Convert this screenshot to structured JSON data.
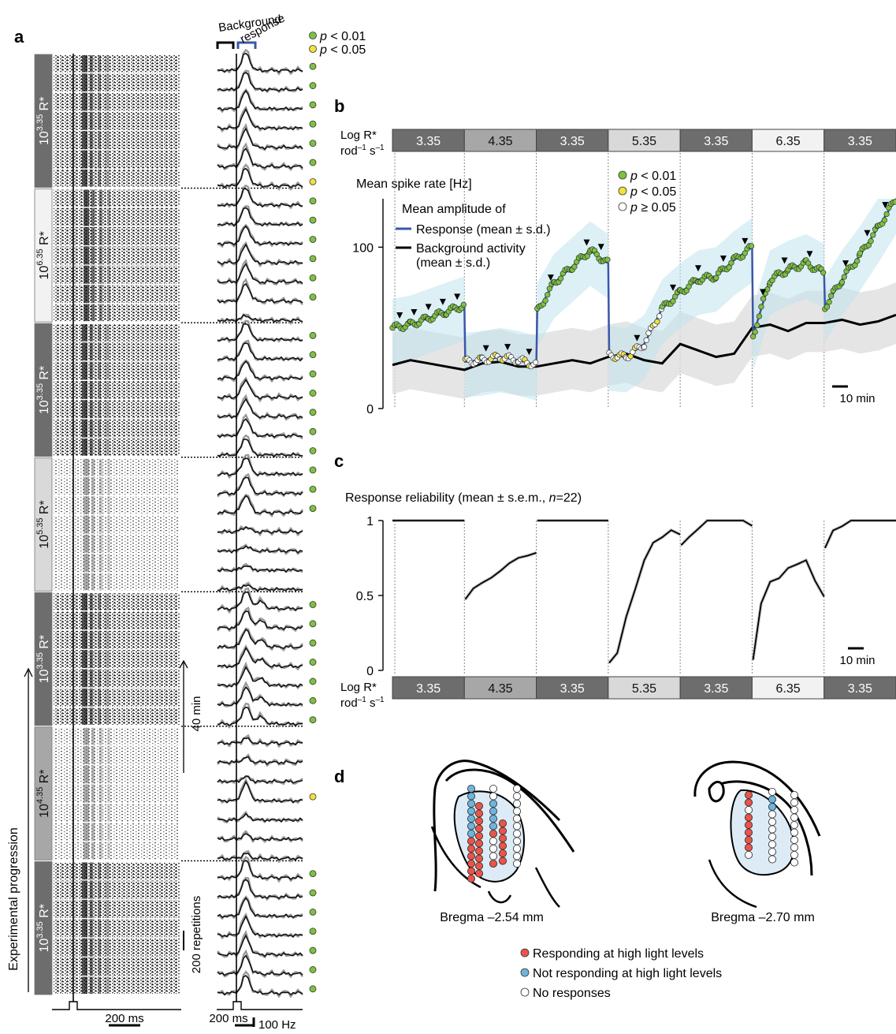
{
  "panel_labels": {
    "a": "a",
    "b": "b",
    "c": "c",
    "d": "d"
  },
  "panel_a": {
    "header_background": "Background",
    "header_response": "response",
    "sig_legend": [
      {
        "color": "#7cc241",
        "p": "p",
        "text": " < 0.01"
      },
      {
        "color": "#f2e13a",
        "p": "p",
        "text": " < 0.05"
      }
    ],
    "blocks": [
      {
        "base": "10",
        "exp": "3.35",
        "unit": " R*",
        "shade": "#6d6d6d",
        "text_color": "#ffffff",
        "dots": [
          "#7cc241",
          "#7cc241",
          "#7cc241",
          "#7cc241",
          "#7cc241",
          "#7cc241",
          "#f2e13a"
        ]
      },
      {
        "base": "10",
        "exp": "6.35",
        "unit": " R*",
        "shade": "#f2f2f2",
        "text_color": "#111111",
        "dots": [
          "#7cc241",
          "#7cc241",
          "#7cc241",
          "#7cc241",
          "#7cc241",
          "#7cc241",
          ""
        ]
      },
      {
        "base": "10",
        "exp": "3.35",
        "unit": " R*",
        "shade": "#6d6d6d",
        "text_color": "#ffffff",
        "dots": [
          "#7cc241",
          "#7cc241",
          "#7cc241",
          "#7cc241",
          "#7cc241",
          "#7cc241",
          "#7cc241"
        ]
      },
      {
        "base": "10",
        "exp": "5.35",
        "unit": " R*",
        "shade": "#d9d9d9",
        "text_color": "#111111",
        "dots": [
          "#7cc241",
          "#7cc241",
          "#7cc241",
          "",
          "",
          "",
          ""
        ]
      },
      {
        "base": "10",
        "exp": "3.35",
        "unit": " R*",
        "shade": "#6d6d6d",
        "text_color": "#ffffff",
        "dots": [
          "#7cc241",
          "#7cc241",
          "#7cc241",
          "#7cc241",
          "#7cc241",
          "#7cc241",
          "#7cc241"
        ]
      },
      {
        "base": "10",
        "exp": "4.35",
        "unit": " R*",
        "shade": "#a7a7a7",
        "text_color": "#111111",
        "dots": [
          "",
          "",
          "",
          "#f2e13a",
          "",
          "",
          ""
        ]
      },
      {
        "base": "10",
        "exp": "3.35",
        "unit": " R*",
        "shade": "#6d6d6d",
        "text_color": "#ffffff",
        "dots": [
          "#7cc241",
          "#7cc241",
          "#7cc241",
          "#7cc241",
          "#7cc241",
          "#7cc241",
          "#7cc241"
        ]
      }
    ],
    "scale_time": "40 min",
    "scale_reps": "200 repetitions",
    "scale_ms_raster": "200 ms",
    "scale_ms_psth": "200 ms",
    "scale_hz": "100 Hz",
    "progression_label": "Experimental progression"
  },
  "light_bar": {
    "label_line1": "Log R*",
    "label_line2_a": "rod",
    "label_line2_sup1": "–1",
    "label_line2_b": " s",
    "label_line2_sup2": "–1",
    "segments": [
      {
        "label": "3.35",
        "color": "#6d6d6d",
        "text_color": "#ffffff"
      },
      {
        "label": "4.35",
        "color": "#a7a7a7",
        "text_color": "#111111"
      },
      {
        "label": "3.35",
        "color": "#6d6d6d",
        "text_color": "#ffffff"
      },
      {
        "label": "5.35",
        "color": "#d9d9d9",
        "text_color": "#111111"
      },
      {
        "label": "3.35",
        "color": "#6d6d6d",
        "text_color": "#ffffff"
      },
      {
        "label": "6.35",
        "color": "#f2f2f2",
        "text_color": "#111111"
      },
      {
        "label": "3.35",
        "color": "#6d6d6d",
        "text_color": "#ffffff"
      }
    ]
  },
  "panel_b": {
    "ylabel": "Mean spike rate [Hz]",
    "legend_title": "Mean amplitude of",
    "legend_response": "Response (mean ± s.d.)",
    "legend_background_1": "Background activity",
    "legend_background_2": "(mean ± s.d.)",
    "sig": [
      {
        "color": "#7cc241",
        "p": "p",
        "text": " < 0.01"
      },
      {
        "color": "#f2e13a",
        "p": "p",
        "text": " < 0.05"
      },
      {
        "color": "#ffffff",
        "p": "p",
        "text": " ≥ 0.05"
      }
    ],
    "scalebar": "10 min",
    "colors": {
      "response": "#3a57a7",
      "background": "#000000",
      "response_band": "#cfeaf3",
      "background_band": "#e0e0e0"
    }
  },
  "panel_c": {
    "title_prefix": "Response reliability (mean ± s.e.m., ",
    "title_n": "n",
    "title_suffix": "=22)",
    "scalebar": "10 min"
  },
  "panel_d": {
    "section_left": "Bregma –2.54 mm",
    "section_right": "Bregma –2.70 mm",
    "legend": [
      {
        "color": "#e8554a",
        "text": "Responding at high light levels"
      },
      {
        "color": "#6fb4da",
        "text": "Not responding at high light levels"
      },
      {
        "color": "#ffffff",
        "text": "No responses"
      }
    ]
  },
  "chart_data": [
    {
      "type": "line",
      "panel": "b",
      "ylabel": "Mean spike rate [Hz]",
      "ylim": [
        0,
        130
      ],
      "yticks": [
        0,
        100
      ],
      "x_unit": "min",
      "xlim": [
        0,
        280
      ],
      "series": [
        {
          "name": "Response",
          "x": [
            0,
            10,
            20,
            30,
            40,
            40.5,
            50,
            60,
            70,
            80,
            80.5,
            90,
            100,
            110,
            120,
            120.5,
            130,
            140,
            150,
            160,
            170,
            180,
            190,
            200,
            200.5,
            210,
            220,
            230,
            240,
            240.5,
            250,
            260,
            270,
            280
          ],
          "values": [
            50,
            52,
            56,
            60,
            64,
            29,
            30,
            32,
            30,
            27,
            60,
            78,
            88,
            98,
            90,
            33,
            32,
            40,
            62,
            72,
            80,
            82,
            92,
            100,
            45,
            80,
            86,
            90,
            84,
            63,
            80,
            95,
            112,
            130
          ]
        },
        {
          "name": "Background activity",
          "x": [
            0,
            10,
            20,
            30,
            40,
            50,
            60,
            70,
            80,
            90,
            100,
            110,
            120,
            130,
            140,
            150,
            160,
            170,
            180,
            190,
            200,
            210,
            220,
            230,
            240,
            250,
            260,
            270,
            280
          ],
          "values": [
            27,
            30,
            28,
            26,
            24,
            28,
            29,
            26,
            26,
            28,
            30,
            28,
            32,
            34,
            30,
            28,
            40,
            36,
            32,
            34,
            50,
            52,
            48,
            53,
            53,
            55,
            52,
            54,
            58
          ]
        }
      ]
    },
    {
      "type": "line",
      "panel": "c",
      "title": "Response reliability (mean ± s.e.m., n=22)",
      "ylim": [
        0,
        1
      ],
      "yticks": [
        0,
        0.5,
        1
      ],
      "x_unit": "min",
      "xlim": [
        0,
        280
      ],
      "series": [
        {
          "name": "",
          "x": [
            0,
            40,
            40.5,
            45,
            50,
            55,
            60,
            65,
            70,
            75,
            80,
            80.5,
            120,
            120.5,
            125,
            130,
            135,
            140,
            145,
            150,
            155,
            160,
            160.5,
            165,
            170,
            175,
            180,
            185,
            190,
            195,
            200,
            200.5,
            205,
            210,
            215,
            220,
            225,
            230,
            235,
            240,
            240.5,
            245,
            250,
            255,
            260,
            280
          ],
          "values": [
            1,
            1,
            0.46,
            0.55,
            0.6,
            0.63,
            0.66,
            0.7,
            0.74,
            0.77,
            0.8,
            1,
            1,
            0.06,
            0.1,
            0.35,
            0.55,
            0.75,
            0.86,
            0.88,
            0.92,
            0.9,
            0.82,
            0.9,
            0.96,
            1,
            1,
            1,
            1,
            1,
            0.98,
            0.08,
            0.45,
            0.58,
            0.6,
            0.68,
            0.72,
            0.75,
            0.6,
            0.48,
            0.82,
            0.92,
            0.96,
            1,
            1,
            1
          ]
        }
      ]
    }
  ]
}
